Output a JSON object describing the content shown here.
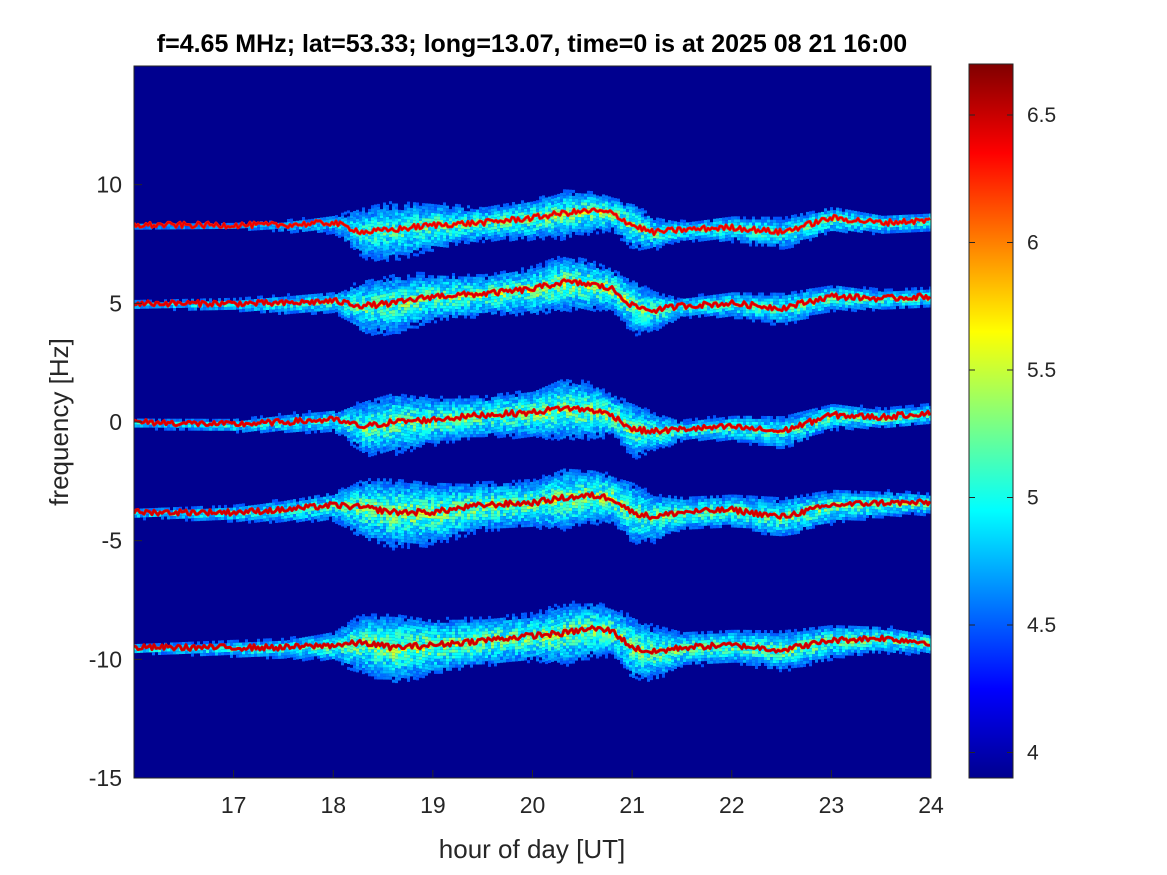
{
  "chart_data": {
    "type": "heatmap",
    "title": "f=4.65 MHz;  lat=53.33; long=13.07, time=0 is at 2025 08 21 16:00",
    "xlabel": "hour of day [UT]",
    "ylabel": "frequency [Hz]",
    "xlim": [
      16,
      24
    ],
    "ylim": [
      -15,
      15
    ],
    "xticks": [
      17,
      18,
      19,
      20,
      21,
      22,
      23,
      24
    ],
    "yticks": [
      -15,
      -10,
      -5,
      0,
      5,
      10
    ],
    "colormap": "jet",
    "background_color": "#00008f",
    "colorbar": {
      "range": [
        3.9,
        6.7
      ],
      "ticks": [
        4,
        4.5,
        5,
        5.5,
        6,
        6.5
      ],
      "tick_labels": [
        "4",
        "4.5",
        "5",
        "5.5",
        "6",
        "6.5"
      ]
    },
    "traces": [
      {
        "nominal_hz": 8.3,
        "x": [
          16.0,
          17.0,
          17.5,
          18.0,
          18.3,
          18.6,
          19.0,
          19.5,
          20.0,
          20.3,
          20.6,
          20.8,
          21.0,
          21.2,
          21.5,
          22.0,
          22.5,
          23.0,
          23.5,
          24.0
        ],
        "y": [
          8.3,
          8.3,
          8.3,
          8.4,
          8.0,
          8.1,
          8.3,
          8.4,
          8.6,
          8.8,
          8.9,
          8.8,
          8.3,
          8.0,
          8.1,
          8.2,
          8.0,
          8.6,
          8.4,
          8.5
        ],
        "intensity": [
          0.45,
          0.45,
          0.5,
          0.6,
          0.75,
          0.8,
          0.85,
          0.85,
          0.9,
          0.9,
          0.95,
          0.9,
          0.85,
          0.8,
          0.75,
          0.75,
          0.75,
          0.8,
          0.75,
          0.75
        ],
        "spread": [
          0.1,
          0.12,
          0.2,
          0.3,
          0.8,
          0.9,
          0.7,
          0.5,
          0.6,
          0.7,
          0.6,
          0.5,
          0.7,
          0.5,
          0.3,
          0.4,
          0.5,
          0.4,
          0.3,
          0.3
        ]
      },
      {
        "nominal_hz": 5.0,
        "x": [
          16.0,
          17.0,
          17.5,
          18.0,
          18.3,
          18.6,
          19.0,
          19.5,
          20.0,
          20.3,
          20.6,
          20.8,
          21.0,
          21.2,
          21.5,
          22.0,
          22.5,
          23.0,
          23.5,
          24.0
        ],
        "y": [
          5.0,
          5.0,
          5.0,
          5.1,
          4.9,
          5.0,
          5.3,
          5.4,
          5.6,
          5.9,
          5.8,
          5.6,
          4.9,
          4.7,
          4.9,
          5.0,
          4.8,
          5.3,
          5.2,
          5.3
        ],
        "intensity": [
          0.6,
          0.65,
          0.7,
          0.75,
          0.85,
          0.85,
          0.9,
          0.9,
          0.95,
          0.95,
          0.98,
          0.95,
          0.9,
          0.85,
          0.8,
          0.8,
          0.8,
          0.85,
          0.8,
          0.8
        ],
        "spread": [
          0.15,
          0.2,
          0.3,
          0.35,
          0.8,
          0.9,
          0.7,
          0.6,
          0.7,
          0.8,
          0.7,
          0.6,
          0.8,
          0.6,
          0.3,
          0.4,
          0.5,
          0.4,
          0.3,
          0.3
        ]
      },
      {
        "nominal_hz": 0.0,
        "x": [
          16.0,
          17.0,
          17.5,
          18.0,
          18.3,
          18.6,
          19.0,
          19.5,
          20.0,
          20.3,
          20.6,
          20.8,
          21.0,
          21.2,
          21.5,
          22.0,
          22.5,
          23.0,
          23.5,
          24.0
        ],
        "y": [
          0.0,
          -0.1,
          0.0,
          0.1,
          -0.2,
          0.0,
          0.1,
          0.3,
          0.4,
          0.6,
          0.5,
          0.3,
          -0.3,
          -0.4,
          -0.3,
          -0.2,
          -0.4,
          0.3,
          0.2,
          0.4
        ],
        "intensity": [
          0.65,
          0.7,
          0.7,
          0.75,
          0.85,
          0.9,
          0.9,
          0.9,
          0.92,
          0.95,
          0.95,
          0.95,
          0.9,
          0.85,
          0.8,
          0.8,
          0.8,
          0.85,
          0.85,
          0.85
        ],
        "spread": [
          0.15,
          0.2,
          0.3,
          0.35,
          0.8,
          0.9,
          0.7,
          0.6,
          0.7,
          0.9,
          0.8,
          0.6,
          0.8,
          0.6,
          0.3,
          0.4,
          0.5,
          0.4,
          0.3,
          0.3
        ]
      },
      {
        "nominal_hz": -3.7,
        "x": [
          16.0,
          17.0,
          17.5,
          18.0,
          18.3,
          18.6,
          19.0,
          19.5,
          20.0,
          20.3,
          20.6,
          20.8,
          21.0,
          21.2,
          21.5,
          22.0,
          22.5,
          23.0,
          23.5,
          24.0
        ],
        "y": [
          -3.8,
          -3.8,
          -3.7,
          -3.5,
          -3.6,
          -3.8,
          -3.8,
          -3.5,
          -3.4,
          -3.2,
          -3.1,
          -3.2,
          -3.8,
          -4.0,
          -3.8,
          -3.7,
          -4.0,
          -3.5,
          -3.4,
          -3.4
        ],
        "intensity": [
          0.7,
          0.72,
          0.75,
          0.8,
          0.9,
          0.95,
          0.95,
          0.92,
          0.92,
          0.95,
          0.95,
          0.95,
          0.9,
          0.88,
          0.85,
          0.85,
          0.85,
          0.88,
          0.85,
          0.85
        ],
        "spread": [
          0.15,
          0.25,
          0.35,
          0.45,
          0.9,
          1.0,
          0.9,
          0.7,
          0.7,
          0.9,
          0.8,
          0.7,
          0.9,
          0.7,
          0.5,
          0.5,
          0.6,
          0.5,
          0.4,
          0.3
        ]
      },
      {
        "nominal_hz": -9.5,
        "x": [
          16.0,
          17.0,
          17.5,
          18.0,
          18.3,
          18.6,
          19.0,
          19.5,
          20.0,
          20.3,
          20.6,
          20.8,
          21.0,
          21.2,
          21.5,
          22.0,
          22.5,
          23.0,
          23.5,
          24.0
        ],
        "y": [
          -9.5,
          -9.5,
          -9.5,
          -9.4,
          -9.3,
          -9.5,
          -9.4,
          -9.2,
          -9.0,
          -8.9,
          -8.7,
          -8.8,
          -9.5,
          -9.7,
          -9.5,
          -9.4,
          -9.6,
          -9.2,
          -9.1,
          -9.3
        ],
        "intensity": [
          0.72,
          0.75,
          0.78,
          0.82,
          0.92,
          0.95,
          0.95,
          0.93,
          0.92,
          0.95,
          0.95,
          0.95,
          0.92,
          0.9,
          0.88,
          0.88,
          0.88,
          0.9,
          0.88,
          0.88
        ],
        "spread": [
          0.15,
          0.25,
          0.3,
          0.45,
          0.9,
          1.0,
          0.8,
          0.7,
          0.7,
          0.9,
          0.8,
          0.7,
          0.9,
          0.8,
          0.5,
          0.5,
          0.6,
          0.5,
          0.4,
          0.3
        ]
      }
    ]
  }
}
